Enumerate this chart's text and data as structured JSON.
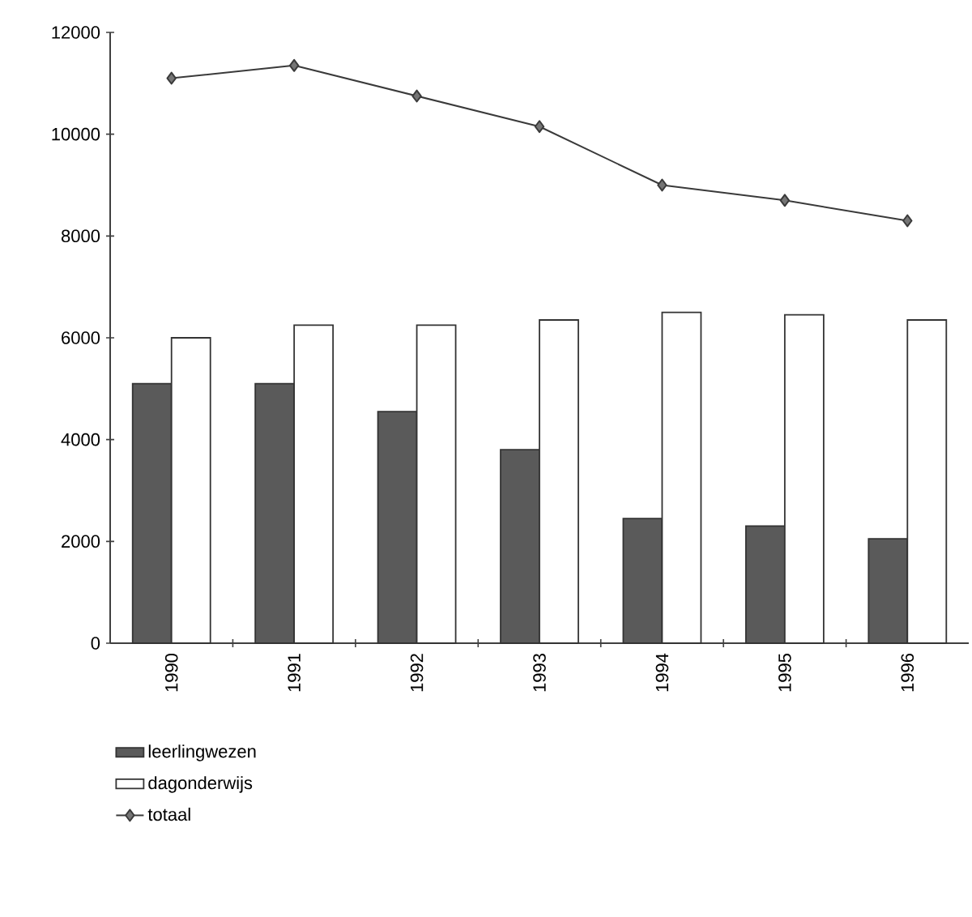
{
  "chart_data": {
    "type": "bar",
    "categories": [
      "1990",
      "1991",
      "1992",
      "1993",
      "1994",
      "1995",
      "1996"
    ],
    "series": [
      {
        "name": "leerlingwezen",
        "color": "#5a5a5a",
        "values": [
          5100,
          5100,
          4550,
          3800,
          2450,
          2300,
          2050
        ]
      },
      {
        "name": "dagonderwijs",
        "color": "#ffffff",
        "values": [
          6000,
          6250,
          6250,
          6350,
          6500,
          6450,
          6350
        ]
      },
      {
        "name": "totaal",
        "type": "line",
        "color": "#3a3a3a",
        "values": [
          11100,
          11350,
          10750,
          10150,
          9000,
          8700,
          8300
        ]
      }
    ],
    "ylim": [
      0,
      12000
    ],
    "yticks": [
      0,
      2000,
      4000,
      6000,
      8000,
      10000,
      12000
    ],
    "grid": false,
    "legend": "bottom",
    "marker": "diamond"
  }
}
